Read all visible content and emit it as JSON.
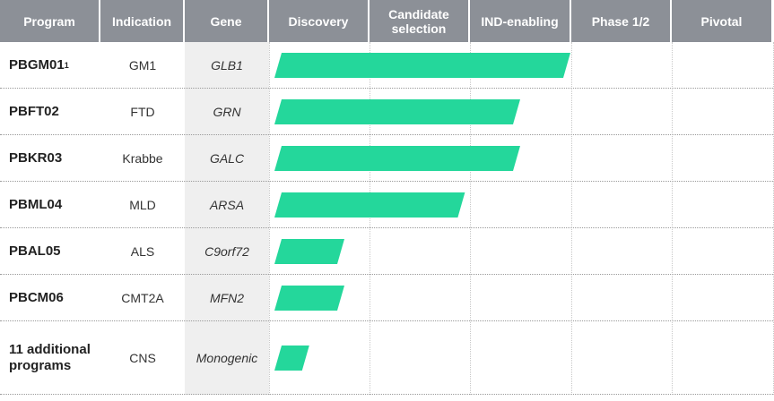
{
  "table": {
    "columns": [
      "Program",
      "Indication",
      "Gene",
      "Discovery",
      "Candidate selection",
      "IND-enabling",
      "Phase 1/2",
      "Pivotal"
    ],
    "rows": [
      {
        "program": "PBGM01",
        "footnote": "1",
        "indication": "GM1",
        "gene": "GLB1",
        "progress": 3.0
      },
      {
        "program": "PBFT02",
        "indication": "FTD",
        "gene": "GRN",
        "progress": 2.5
      },
      {
        "program": "PBKR03",
        "indication": "Krabbe",
        "gene": "GALC",
        "progress": 2.5
      },
      {
        "program": "PBML04",
        "indication": "MLD",
        "gene": "ARSA",
        "progress": 1.95
      },
      {
        "program": "PBAL05",
        "indication": "ALS",
        "gene": "C9orf72",
        "progress": 0.75
      },
      {
        "program": "PBCM06",
        "indication": "CMT2A",
        "gene": "MFN2",
        "progress": 0.75
      },
      {
        "program": "11 additional programs",
        "indication": "CNS",
        "gene": "Monogenic",
        "progress": 0.4
      }
    ],
    "bar_color": "#24d79b"
  }
}
